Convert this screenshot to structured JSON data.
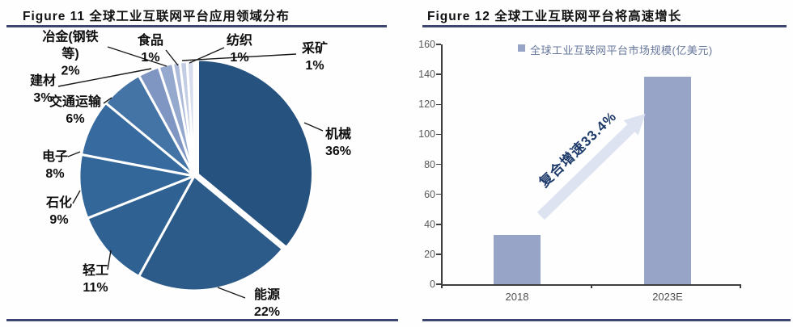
{
  "figure11": {
    "title": "Figure 11 全球工业互联网平台应用领域分布"
  },
  "figure12": {
    "title": "Figure 12 全球工业互联网平台将高速增长",
    "legend": "全球工业互联网平台市场规模(亿美元)",
    "annotation": "复合增速33.4%"
  },
  "chart_data": [
    {
      "figure": "Figure 11",
      "type": "pie",
      "title": "全球工业互联网平台应用领域分布",
      "unit": "%",
      "start_angle": "12-oclock",
      "direction": "clockwise",
      "slices": [
        {
          "label": "机械",
          "value": 36,
          "color": "#26527F"
        },
        {
          "label": "能源",
          "value": 22,
          "color": "#2C5B8A"
        },
        {
          "label": "轻工",
          "value": 11,
          "color": "#2F6292"
        },
        {
          "label": "石化",
          "value": 9,
          "color": "#336799"
        },
        {
          "label": "电子",
          "value": 8,
          "color": "#376A9F"
        },
        {
          "label": "交通运输",
          "value": 6,
          "color": "#4474A6"
        },
        {
          "label": "建材",
          "value": 3,
          "color": "#7E96C1"
        },
        {
          "label": "冶金(钢铁等)",
          "value": 2,
          "color": "#95A9CF"
        },
        {
          "label": "食品",
          "value": 1,
          "color": "#ADBAD9"
        },
        {
          "label": "纺织",
          "value": 1,
          "color": "#C3CDE4"
        },
        {
          "label": "采矿",
          "value": 1,
          "color": "#D7DDEC"
        }
      ]
    },
    {
      "figure": "Figure 12",
      "type": "bar",
      "title": "全球工业互联网平台将高速增长",
      "legend": "全球工业互联网平台市场规模(亿美元)",
      "annotation": "复合增速33.4%",
      "categories": [
        "2018",
        "2023E"
      ],
      "values": [
        32.7,
        138.2
      ],
      "ylim": [
        0,
        160
      ],
      "yticks": [
        0,
        20,
        40,
        60,
        80,
        100,
        120,
        140,
        160
      ],
      "bar_color": "#97A4C8",
      "grid": false,
      "legend_position": "top"
    }
  ],
  "colors": {
    "rule": "#3c4470",
    "bar": "#97A4C8",
    "arrow": "#dde3f1",
    "annotation_text": "#1d3a6a",
    "legend_text": "#67779c"
  }
}
